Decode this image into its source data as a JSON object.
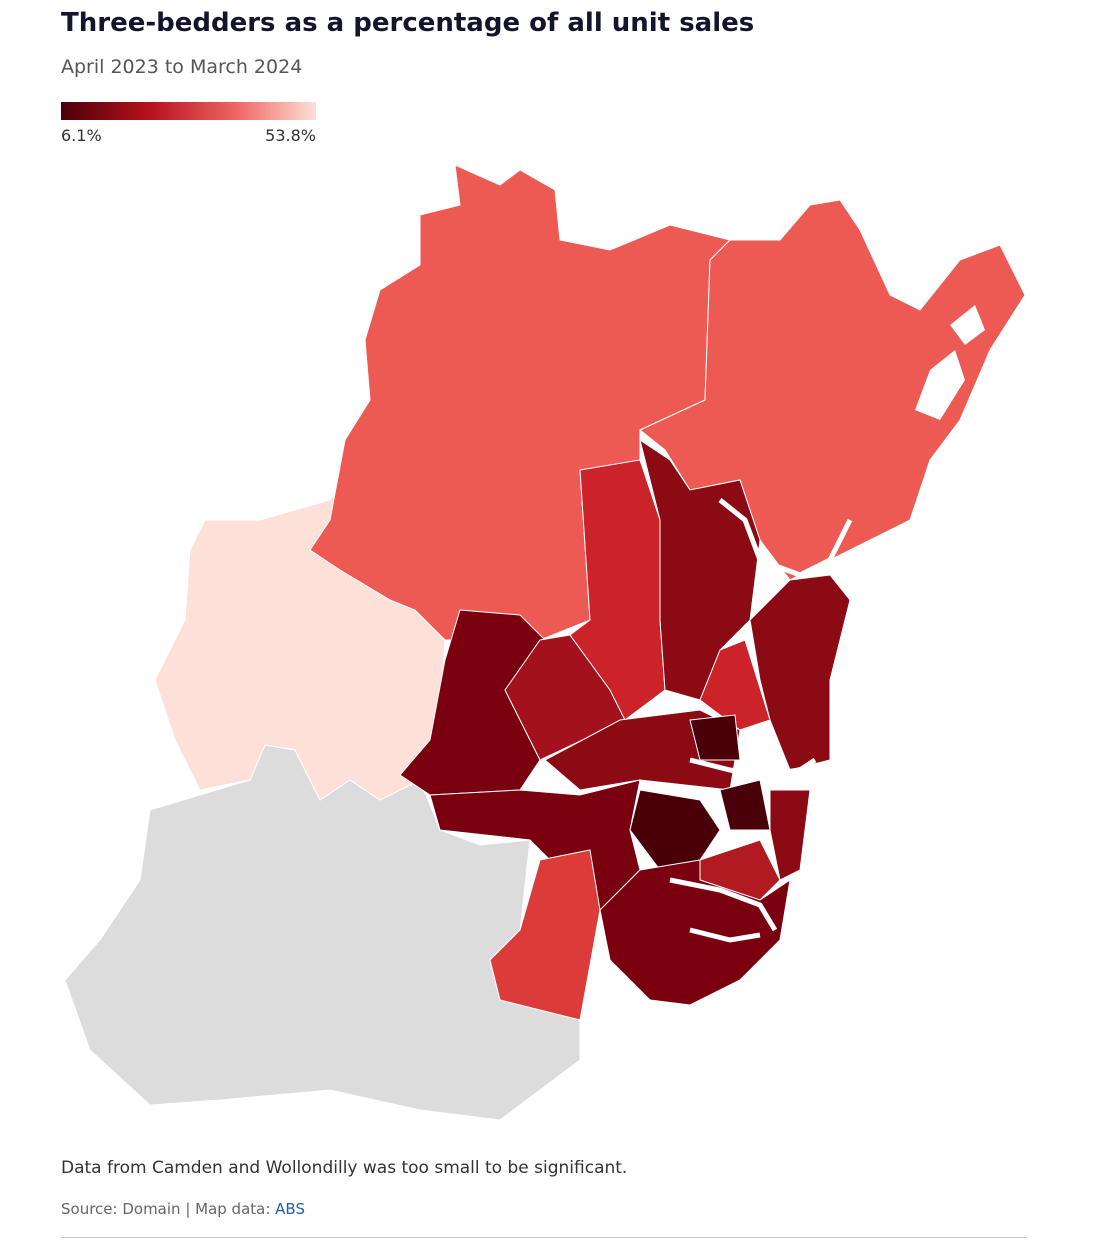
{
  "header": {
    "title": "Three-bedders as a percentage of all unit sales",
    "subtitle": "April 2023 to March 2024"
  },
  "legend": {
    "min": {
      "value": 6.1,
      "label": "6.1%"
    },
    "max": {
      "value": 53.8,
      "label": "53.8%"
    }
  },
  "footer": {
    "note": "Data from Camden and Wollondilly was too small to be significant.",
    "source": {
      "text": "Source: Domain | Map data: ",
      "link": "ABS"
    }
  }
}
